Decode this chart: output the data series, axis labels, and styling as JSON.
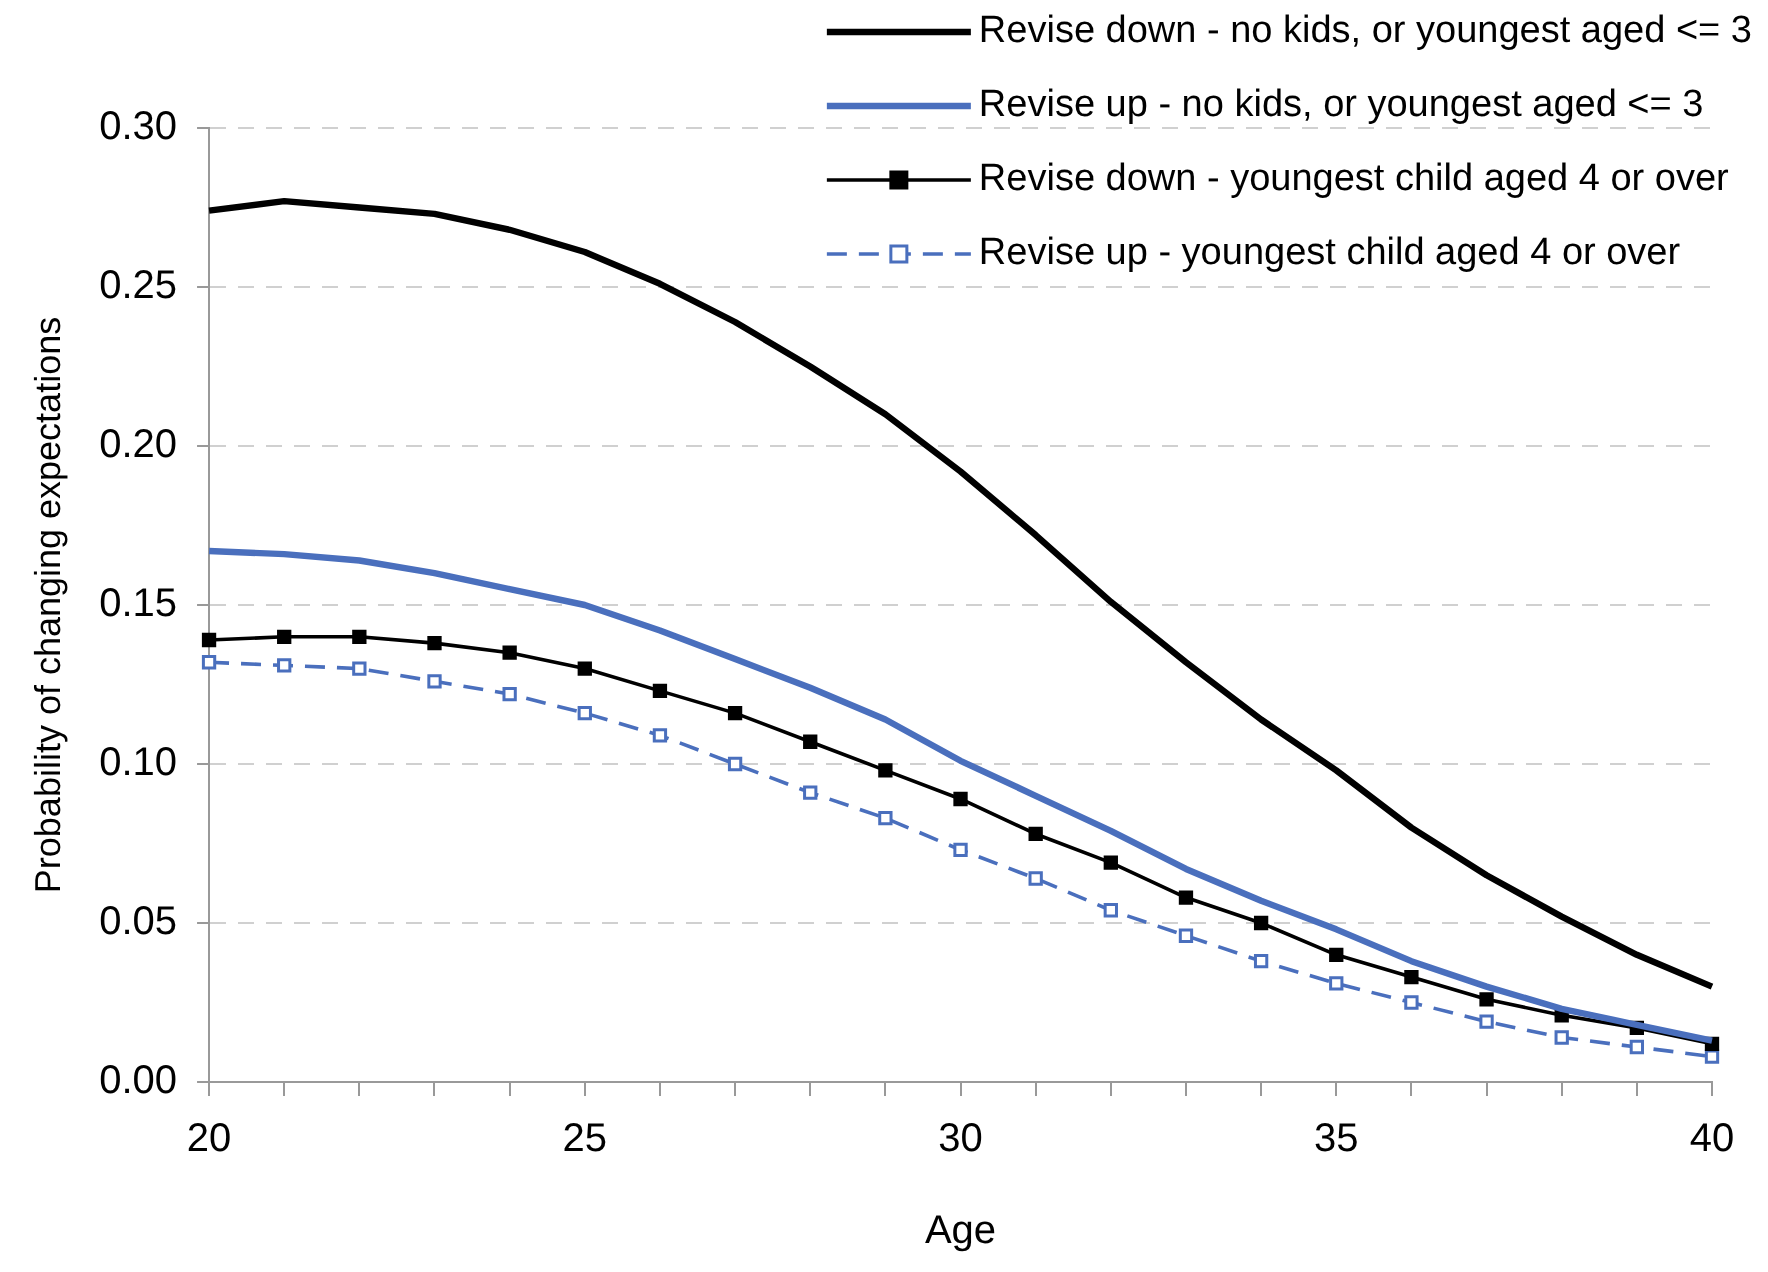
{
  "chart_data": {
    "type": "line",
    "xlabel": "Age",
    "ylabel": "Probability of changing expectations",
    "x": [
      20,
      21,
      22,
      23,
      24,
      25,
      26,
      27,
      28,
      29,
      30,
      31,
      32,
      33,
      34,
      35,
      36,
      37,
      38,
      39,
      40
    ],
    "series": [
      {
        "name": "Revise down - no kids, or youngest aged <= 3",
        "color": "#000000",
        "marker": "none",
        "line_style": "solid",
        "values": [
          0.274,
          0.277,
          0.275,
          0.273,
          0.268,
          0.261,
          0.251,
          0.239,
          0.225,
          0.21,
          0.192,
          0.172,
          0.151,
          0.132,
          0.114,
          0.098,
          0.08,
          0.065,
          0.052,
          0.04,
          0.03
        ]
      },
      {
        "name": "Revise up - no kids, or youngest aged <= 3",
        "color": "#4a6fbd",
        "marker": "none",
        "line_style": "solid",
        "values": [
          0.167,
          0.166,
          0.164,
          0.16,
          0.155,
          0.15,
          0.142,
          0.133,
          0.124,
          0.114,
          0.101,
          0.09,
          0.079,
          0.067,
          0.057,
          0.048,
          0.038,
          0.03,
          0.023,
          0.018,
          0.013
        ]
      },
      {
        "name": "Revise down - youngest child aged 4 or over",
        "color": "#000000",
        "marker": "square",
        "line_style": "solid",
        "values": [
          0.139,
          0.14,
          0.14,
          0.138,
          0.135,
          0.13,
          0.123,
          0.116,
          0.107,
          0.098,
          0.089,
          0.078,
          0.069,
          0.058,
          0.05,
          0.04,
          0.033,
          0.026,
          0.021,
          0.017,
          0.012
        ]
      },
      {
        "name": "Revise up - youngest child aged 4 or over",
        "color": "#4a6fbd",
        "marker": "square",
        "line_style": "dashed",
        "values": [
          0.132,
          0.131,
          0.13,
          0.126,
          0.122,
          0.116,
          0.109,
          0.1,
          0.091,
          0.083,
          0.073,
          0.064,
          0.054,
          0.046,
          0.038,
          0.031,
          0.025,
          0.019,
          0.014,
          0.011,
          0.008
        ]
      }
    ],
    "xlim": [
      20,
      40
    ],
    "xticks": [
      20,
      {
        "value": 21,
        "label": null
      },
      {
        "value": 22,
        "label": null
      },
      {
        "value": 23,
        "label": null
      },
      {
        "value": 24,
        "label": null
      },
      25,
      {
        "value": 26,
        "label": null
      },
      {
        "value": 27,
        "label": null
      },
      {
        "value": 28,
        "label": null
      },
      {
        "value": 29,
        "label": null
      },
      30,
      {
        "value": 31,
        "label": null
      },
      {
        "value": 32,
        "label": null
      },
      {
        "value": 33,
        "label": null
      },
      {
        "value": 34,
        "label": null
      },
      35,
      {
        "value": 36,
        "label": null
      },
      {
        "value": 37,
        "label": null
      },
      {
        "value": 38,
        "label": null
      },
      {
        "value": 39,
        "label": null
      },
      40
    ],
    "ylim": [
      0,
      0.3
    ],
    "yticks": [
      {
        "value": 0,
        "label": "0.00"
      },
      {
        "value": 0.05,
        "label": "0.05"
      },
      {
        "value": 0.1,
        "label": "0.10"
      },
      {
        "value": 0.15,
        "label": "0.15"
      },
      {
        "value": 0.2,
        "label": "0.20"
      },
      {
        "value": 0.25,
        "label": "0.25"
      },
      {
        "value": 0.3,
        "label": "0.30"
      }
    ],
    "grid": "y",
    "legend": "top right"
  }
}
